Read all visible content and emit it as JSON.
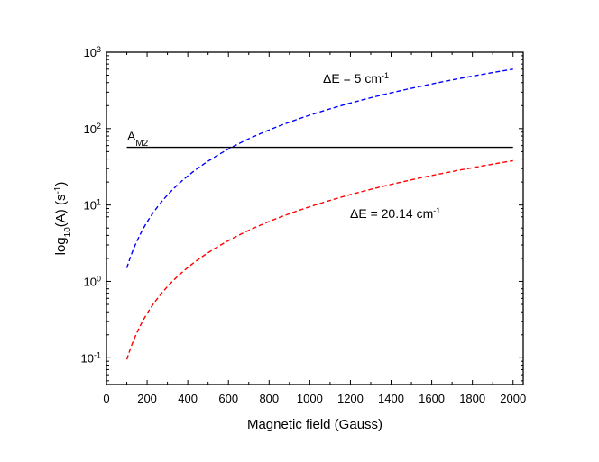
{
  "chart_data": {
    "type": "line",
    "title": "",
    "xlabel": "Magnetic field (Gauss)",
    "ylabel": {
      "main": "log",
      "main_sub": "10",
      "mid": "(A) (s",
      "sup": "-1",
      "end": ")"
    },
    "xlim": [
      0,
      2050
    ],
    "ylim_log10": [
      -1.35,
      3.0
    ],
    "xscale": "linear",
    "yscale": "log",
    "x_ticks": [
      0,
      200,
      400,
      600,
      800,
      1000,
      1200,
      1400,
      1600,
      1800,
      2000
    ],
    "x_tick_labels": [
      "0",
      "200",
      "400",
      "600",
      "800",
      "1000",
      "1200",
      "1400",
      "1600",
      "1800",
      "2000"
    ],
    "y_ticks": [
      {
        "value": 0.1,
        "base": "10",
        "exp": "-1"
      },
      {
        "value": 1,
        "base": "10",
        "exp": "0"
      },
      {
        "value": 10,
        "base": "10",
        "exp": "1"
      },
      {
        "value": 100,
        "base": "10",
        "exp": "2"
      },
      {
        "value": 1000,
        "base": "10",
        "exp": "3"
      }
    ],
    "series": [
      {
        "name": "ΔE = 5 cm⁻¹",
        "style": "dashed",
        "color": "#0000ff",
        "x": [
          100,
          200,
          300,
          400,
          500,
          600,
          800,
          1000,
          1200,
          1400,
          1600,
          1800,
          2000
        ],
        "y": [
          1.5,
          6,
          13.5,
          24,
          37.5,
          54,
          96,
          150,
          216,
          294,
          384,
          486,
          600
        ]
      },
      {
        "name": "ΔE = 20.14 cm⁻¹",
        "style": "dashed",
        "color": "#ff0000",
        "x": [
          100,
          200,
          300,
          400,
          500,
          600,
          800,
          1000,
          1200,
          1400,
          1600,
          1800,
          2000
        ],
        "y": [
          0.095,
          0.38,
          0.855,
          1.52,
          2.375,
          3.42,
          6.08,
          9.5,
          13.68,
          18.62,
          24.32,
          30.78,
          38
        ]
      },
      {
        "name": "A_M2",
        "style": "solid",
        "color": "#000000",
        "x": [
          100,
          2000
        ],
        "y": [
          57,
          57
        ]
      }
    ],
    "annotations": [
      {
        "id": "blue",
        "prefix": "ΔE = 5 cm",
        "sup": "-1",
        "color": "#000000"
      },
      {
        "id": "red",
        "prefix": "ΔE = 20.14 cm",
        "sup": "-1",
        "color": "#000000"
      },
      {
        "id": "am2",
        "prefix": "A",
        "sub": "M2",
        "color": "#000000"
      }
    ],
    "grid": false,
    "legend": "none"
  }
}
